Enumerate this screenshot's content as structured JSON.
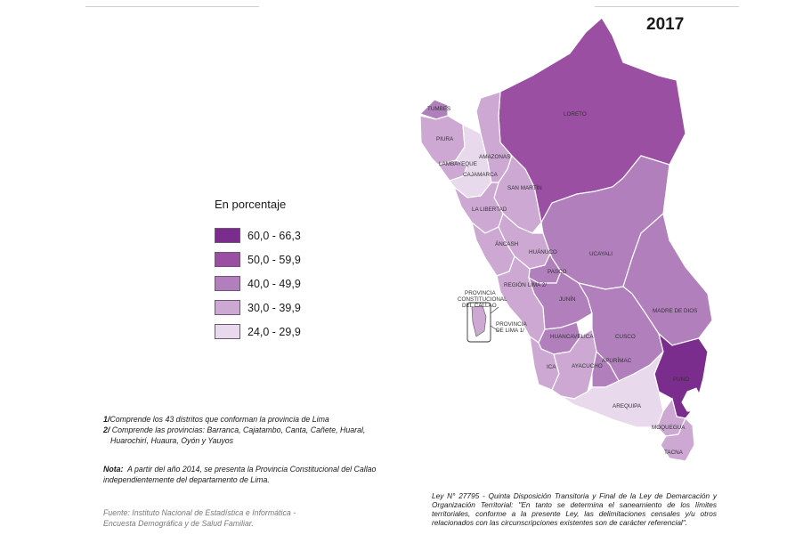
{
  "year": "2017",
  "legend": {
    "title": "En porcentaje",
    "items": [
      {
        "label": "60,0 - 66,3",
        "color": "#7b2d8e"
      },
      {
        "label": "50,0 - 59,9",
        "color": "#9b4fa3"
      },
      {
        "label": "40,0 - 49,9",
        "color": "#b07fbc"
      },
      {
        "label": "30,0 - 39,9",
        "color": "#cca8d3"
      },
      {
        "label": "24,0 - 29,9",
        "color": "#e9d9ec"
      }
    ]
  },
  "map": {
    "regions": [
      {
        "name": "LORETO",
        "cls": "50"
      },
      {
        "name": "TUMBES",
        "cls": "40"
      },
      {
        "name": "PIURA",
        "cls": "30"
      },
      {
        "name": "LAMBAYEQUE",
        "cls": "30"
      },
      {
        "name": "CAJAMARCA",
        "cls": "24"
      },
      {
        "name": "AMAZONAS",
        "cls": "30"
      },
      {
        "name": "SAN MARTÍN",
        "cls": "30"
      },
      {
        "name": "LA LIBERTAD",
        "cls": "30"
      },
      {
        "name": "ÁNCASH",
        "cls": "30"
      },
      {
        "name": "HUÁNUCO",
        "cls": "30"
      },
      {
        "name": "UCAYALI",
        "cls": "40"
      },
      {
        "name": "PASCO",
        "cls": "40"
      },
      {
        "name": "REGIÓN LIMA 2/",
        "cls": "30"
      },
      {
        "name": "JUNÍN",
        "cls": "40"
      },
      {
        "name": "MADRE DE DIOS",
        "cls": "40"
      },
      {
        "name": "HUANCAVELICA",
        "cls": "40"
      },
      {
        "name": "CUSCO",
        "cls": "40"
      },
      {
        "name": "ICA",
        "cls": "30"
      },
      {
        "name": "AYACUCHO",
        "cls": "30"
      },
      {
        "name": "APURÍMAC",
        "cls": "40"
      },
      {
        "name": "PUNO",
        "cls": "60"
      },
      {
        "name": "AREQUIPA",
        "cls": "24"
      },
      {
        "name": "MOQUEGUA",
        "cls": "30"
      },
      {
        "name": "TACNA",
        "cls": "30"
      }
    ],
    "callout_callao": "PROVINCIA CONSTITUCIONAL DEL CALLAO",
    "callout_lima": "PROVINCIA DE LIMA 1/"
  },
  "notes": {
    "note1_ref": "1/",
    "note1": "Comprende los 43 distritos que conforman la provincia de Lima",
    "note2_ref": "2/",
    "note2_line1": "Comprende las provincias: Barranca, Cajatambo, Canta, Cañete, Huaral,",
    "note2_line2": "Huarochirí, Huaura, Oyón y Yauyos",
    "nota_label": "Nota:",
    "nota_text": "A partir del año 2014, se presenta la Provincia Constitucional del Callao independientemente del departamento de Lima.",
    "fuente_line1": "Fuente: Instituto Nacional de Estadística e Informática -",
    "fuente_line2": "Encuesta Demográfica y de Salud Familiar.",
    "ley": "Ley N° 27795 - Quinta Disposición Transitoria y Final de la Ley de Demarcación y Organización Territorial: \"En tanto se determina el saneamiento de los límites territoriales, conforme a la presente Ley, las delimitaciones censales y/u otros relacionados con las circunscripciones existentes son de carácter referencial\"."
  }
}
